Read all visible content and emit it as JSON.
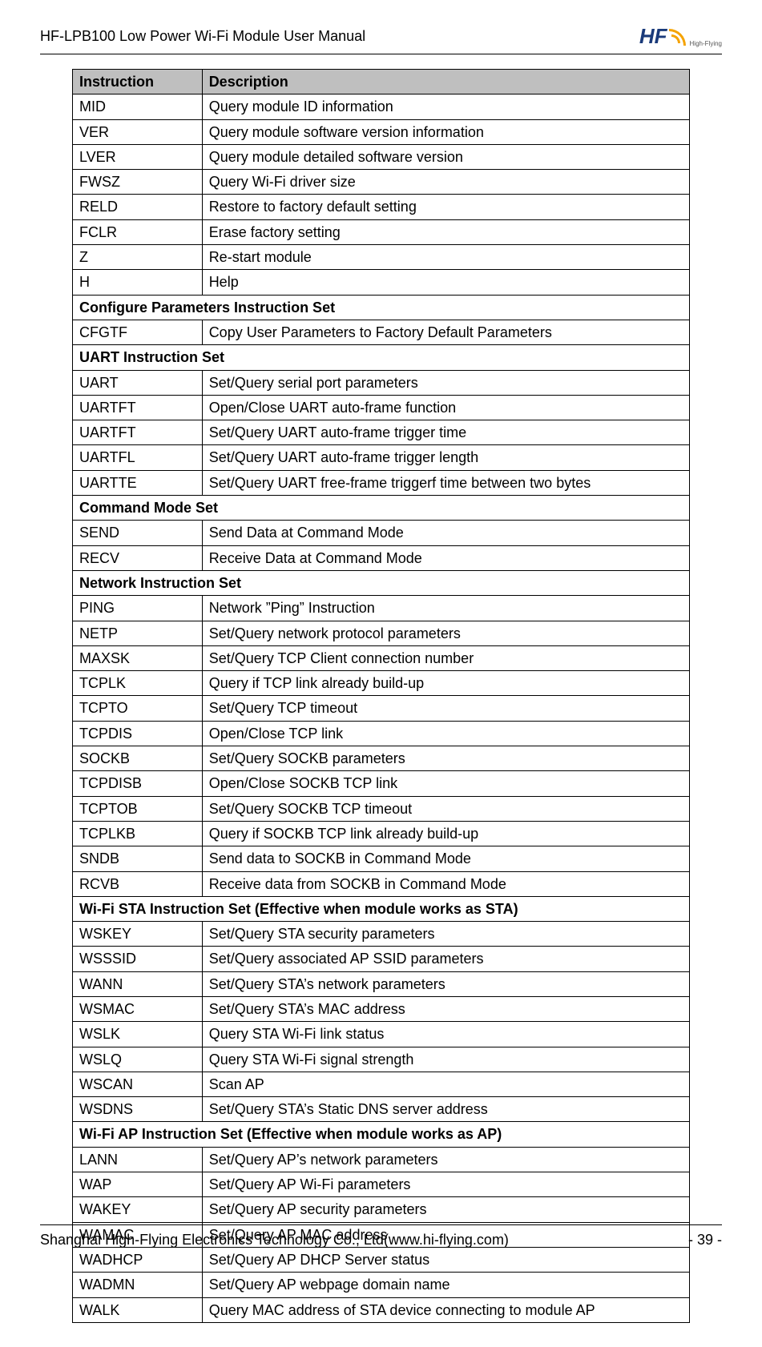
{
  "header": {
    "title": "HF-LPB100 Low Power Wi-Fi Module User Manual",
    "logo_text": "HF",
    "logo_sub": "High-Flying"
  },
  "table": {
    "columns": [
      "Instruction",
      "Description"
    ],
    "col_widths_pct": [
      21,
      79
    ],
    "header_bg": "#bfbfbf",
    "border_color": "#000000",
    "font_size_pt": 13,
    "rows": [
      {
        "type": "head",
        "cells": [
          "Instruction",
          "Description"
        ]
      },
      {
        "type": "data",
        "cells": [
          "MID",
          "Query module ID information"
        ]
      },
      {
        "type": "data",
        "cells": [
          "VER",
          "Query module software version information"
        ]
      },
      {
        "type": "data",
        "cells": [
          "LVER",
          "Query module detailed software version"
        ]
      },
      {
        "type": "data",
        "cells": [
          "FWSZ",
          "Query Wi-Fi driver size"
        ]
      },
      {
        "type": "data",
        "cells": [
          "RELD",
          "Restore to factory default setting"
        ]
      },
      {
        "type": "data",
        "cells": [
          "FCLR",
          "Erase factory setting"
        ]
      },
      {
        "type": "data",
        "cells": [
          "Z",
          "Re-start module"
        ]
      },
      {
        "type": "data",
        "cells": [
          "H",
          "Help"
        ]
      },
      {
        "type": "section",
        "cells": [
          "Configure Parameters Instruction Set"
        ]
      },
      {
        "type": "data",
        "cells": [
          "CFGTF",
          "Copy User Parameters to Factory Default Parameters"
        ]
      },
      {
        "type": "section",
        "cells": [
          "UART Instruction Set"
        ]
      },
      {
        "type": "data",
        "cells": [
          "UART",
          "Set/Query serial port parameters"
        ]
      },
      {
        "type": "data",
        "cells": [
          "UARTFT",
          "Open/Close UART auto-frame function"
        ]
      },
      {
        "type": "data",
        "cells": [
          "UARTFT",
          "Set/Query UART auto-frame trigger time"
        ]
      },
      {
        "type": "data",
        "cells": [
          "UARTFL",
          "Set/Query UART auto-frame trigger length"
        ]
      },
      {
        "type": "data",
        "cells": [
          "UARTTE",
          "Set/Query UART free-frame triggerf time between two bytes"
        ]
      },
      {
        "type": "section",
        "cells": [
          "Command Mode Set"
        ]
      },
      {
        "type": "data",
        "cells": [
          "SEND",
          "Send Data at Command Mode"
        ]
      },
      {
        "type": "data",
        "cells": [
          "RECV",
          "Receive Data at Command Mode"
        ]
      },
      {
        "type": "section",
        "cells": [
          "Network Instruction Set"
        ]
      },
      {
        "type": "data",
        "cells": [
          "PING",
          "Network ”Ping” Instruction"
        ]
      },
      {
        "type": "data",
        "cells": [
          "NETP",
          "Set/Query network protocol parameters"
        ]
      },
      {
        "type": "data",
        "cells": [
          "MAXSK",
          "Set/Query TCP Client connection number"
        ]
      },
      {
        "type": "data",
        "cells": [
          "TCPLK",
          "Query if TCP link already build-up"
        ]
      },
      {
        "type": "data",
        "cells": [
          "TCPTO",
          "Set/Query TCP timeout"
        ]
      },
      {
        "type": "data",
        "cells": [
          "TCPDIS",
          "Open/Close TCP link"
        ]
      },
      {
        "type": "data",
        "cells": [
          "SOCKB",
          "Set/Query SOCKB parameters"
        ]
      },
      {
        "type": "data",
        "cells": [
          "TCPDISB",
          "Open/Close SOCKB TCP link"
        ]
      },
      {
        "type": "data",
        "cells": [
          "TCPTOB",
          "Set/Query SOCKB TCP timeout"
        ]
      },
      {
        "type": "data",
        "cells": [
          "TCPLKB",
          "Query if SOCKB TCP link already build-up"
        ]
      },
      {
        "type": "data",
        "cells": [
          "SNDB",
          "Send data to SOCKB in Command Mode"
        ]
      },
      {
        "type": "data",
        "cells": [
          "RCVB",
          "Receive data from SOCKB in Command Mode"
        ]
      },
      {
        "type": "section",
        "cells": [
          "Wi-Fi STA Instruction Set (Effective when module works as STA)"
        ]
      },
      {
        "type": "data",
        "cells": [
          "WSKEY",
          "Set/Query STA security parameters"
        ]
      },
      {
        "type": "data",
        "cells": [
          "WSSSID",
          "Set/Query associated  AP SSID parameters"
        ]
      },
      {
        "type": "data",
        "cells": [
          "WANN",
          "Set/Query STA’s network parameters"
        ]
      },
      {
        "type": "data",
        "cells": [
          "WSMAC",
          "Set/Query STA’s MAC address"
        ]
      },
      {
        "type": "data",
        "cells": [
          "WSLK",
          "Query STA Wi-Fi link status"
        ]
      },
      {
        "type": "data",
        "cells": [
          "WSLQ",
          "Query STA Wi-Fi signal strength"
        ]
      },
      {
        "type": "data",
        "cells": [
          "WSCAN",
          "Scan AP"
        ]
      },
      {
        "type": "data",
        "cells": [
          "WSDNS",
          "Set/Query STA’s Static DNS server address"
        ]
      },
      {
        "type": "section",
        "cells": [
          "Wi-Fi AP Instruction Set (Effective when module works as AP)"
        ]
      },
      {
        "type": "data",
        "cells": [
          "LANN",
          "Set/Query AP’s network parameters"
        ]
      },
      {
        "type": "data",
        "cells": [
          "WAP",
          "Set/Query AP Wi-Fi parameters"
        ]
      },
      {
        "type": "data",
        "cells": [
          "WAKEY",
          "Set/Query AP security parameters"
        ]
      },
      {
        "type": "data",
        "cells": [
          "WAMAC",
          "Set/Query AP MAC address"
        ]
      },
      {
        "type": "data",
        "cells": [
          "WADHCP",
          "Set/Query AP DHCP Server status"
        ]
      },
      {
        "type": "data",
        "cells": [
          "WADMN",
          "Set/Query AP webpage domain name"
        ]
      },
      {
        "type": "data",
        "cells": [
          "WALK",
          "Query MAC address of STA device connecting to module AP"
        ]
      }
    ]
  },
  "footer": {
    "left": "Shanghai High-Flying Electronics Technology Co., Ltd(www.hi-flying.com)",
    "right": "- 39 -"
  },
  "colors": {
    "text": "#000000",
    "background": "#ffffff",
    "logo_blue": "#1a3a7a",
    "logo_orange": "#f5a300"
  }
}
